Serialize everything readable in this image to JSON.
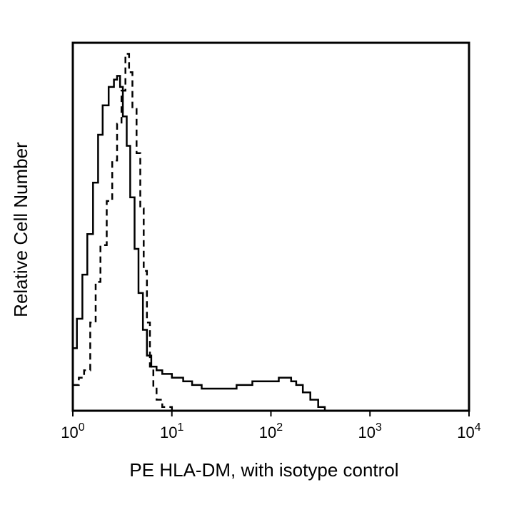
{
  "chart_data": {
    "type": "line",
    "title": "",
    "xlabel": "PE HLA-DM, with isotype control",
    "ylabel": "Relative Cell Number",
    "xscale": "log",
    "xlim": [
      1,
      10000
    ],
    "ylim": [
      0,
      100
    ],
    "x_ticks": [
      {
        "value": 1,
        "base": "10",
        "exp": "0"
      },
      {
        "value": 10,
        "base": "10",
        "exp": "1"
      },
      {
        "value": 100,
        "base": "10",
        "exp": "2"
      },
      {
        "value": 1000,
        "base": "10",
        "exp": "3"
      },
      {
        "value": 10000,
        "base": "10",
        "exp": "4"
      }
    ],
    "grid": false,
    "legend": "none",
    "series": [
      {
        "style": "solid",
        "color": "#000000",
        "points": [
          [
            1.0,
            17
          ],
          [
            1.1,
            25
          ],
          [
            1.25,
            37
          ],
          [
            1.4,
            48
          ],
          [
            1.6,
            62
          ],
          [
            1.8,
            75
          ],
          [
            2.0,
            83
          ],
          [
            2.3,
            88
          ],
          [
            2.6,
            90
          ],
          [
            2.8,
            91
          ],
          [
            3.0,
            88
          ],
          [
            3.2,
            80
          ],
          [
            3.5,
            72
          ],
          [
            3.8,
            58
          ],
          [
            4.2,
            44
          ],
          [
            4.6,
            32
          ],
          [
            5.1,
            22
          ],
          [
            5.6,
            15
          ],
          [
            6.2,
            12
          ],
          [
            7.0,
            11
          ],
          [
            8.0,
            10
          ],
          [
            10,
            9
          ],
          [
            13,
            8
          ],
          [
            16,
            7
          ],
          [
            20,
            6
          ],
          [
            25,
            6
          ],
          [
            30,
            6
          ],
          [
            38,
            6
          ],
          [
            45,
            7
          ],
          [
            55,
            7
          ],
          [
            65,
            8
          ],
          [
            80,
            8
          ],
          [
            100,
            8
          ],
          [
            120,
            9
          ],
          [
            140,
            9
          ],
          [
            160,
            8
          ],
          [
            180,
            7
          ],
          [
            210,
            5
          ],
          [
            250,
            3
          ],
          [
            300,
            1
          ],
          [
            350,
            0
          ],
          [
            400,
            0
          ]
        ]
      },
      {
        "style": "dashed",
        "color": "#000000",
        "points": [
          [
            1.0,
            7
          ],
          [
            1.15,
            9
          ],
          [
            1.3,
            11
          ],
          [
            1.5,
            24
          ],
          [
            1.7,
            35
          ],
          [
            1.9,
            45
          ],
          [
            2.2,
            57
          ],
          [
            2.5,
            68
          ],
          [
            2.8,
            78
          ],
          [
            3.1,
            87
          ],
          [
            3.4,
            97
          ],
          [
            3.7,
            92
          ],
          [
            4.0,
            82
          ],
          [
            4.4,
            70
          ],
          [
            4.8,
            55
          ],
          [
            5.2,
            38
          ],
          [
            5.6,
            24
          ],
          [
            6.0,
            12
          ],
          [
            6.5,
            6
          ],
          [
            7.0,
            3
          ],
          [
            8.0,
            1
          ],
          [
            10,
            0
          ],
          [
            20,
            0
          ],
          [
            50,
            0
          ],
          [
            100,
            0
          ],
          [
            300,
            0
          ],
          [
            500,
            0
          ],
          [
            700,
            0
          ]
        ]
      }
    ]
  }
}
